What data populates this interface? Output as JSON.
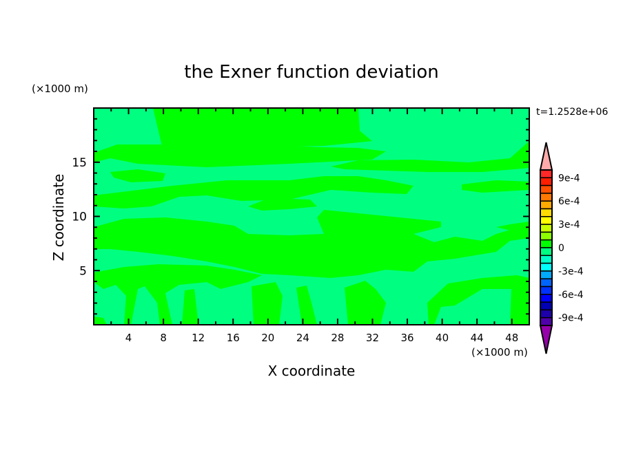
{
  "chart_data": {
    "type": "heatmap",
    "subtype": "filled-contour",
    "title": "the Exner function deviation",
    "xlabel": "X coordinate",
    "ylabel": "Z coordinate",
    "x_unit": "(×1000 m)",
    "y_unit": "(×1000 m)",
    "time_label": "t=1.2528e+06",
    "xlim": [
      0,
      50
    ],
    "ylim": [
      0,
      20
    ],
    "x_ticks": [
      4,
      8,
      12,
      16,
      20,
      24,
      28,
      32,
      36,
      40,
      44,
      48
    ],
    "y_ticks": [
      5,
      10,
      15
    ],
    "colorbar": {
      "levels_min": -0.001,
      "levels_max": 0.001,
      "level_step": 0.0001,
      "extend": "both",
      "tick_values": [
        0.0009,
        0.0006,
        0.0003,
        0,
        -0.0003,
        -0.0006,
        -0.0009
      ],
      "tick_labels": [
        "9e-4",
        "6e-4",
        "3e-4",
        "0",
        "-3e-4",
        "-6e-4",
        "-9e-4"
      ],
      "colors_top_to_bottom": [
        "#ff2828",
        "#ff1e00",
        "#ff5000",
        "#ff7800",
        "#ffaa00",
        "#ffdc00",
        "#ffff00",
        "#c8ff00",
        "#8cff00",
        "#00ff00",
        "#00ff80",
        "#00ffc8",
        "#00ffff",
        "#00aaff",
        "#0064ff",
        "#0032ff",
        "#0000ff",
        "#0000b4",
        "#1e00aa",
        "#5000aa"
      ],
      "over_color": "#ffaaaa",
      "under_color": "#9600aa"
    },
    "field_colors_present": [
      "#00ff80",
      "#00ff00"
    ],
    "field_value_ranges_present": [
      [
        -0.0001,
        0
      ],
      [
        0,
        0.0001
      ]
    ]
  }
}
